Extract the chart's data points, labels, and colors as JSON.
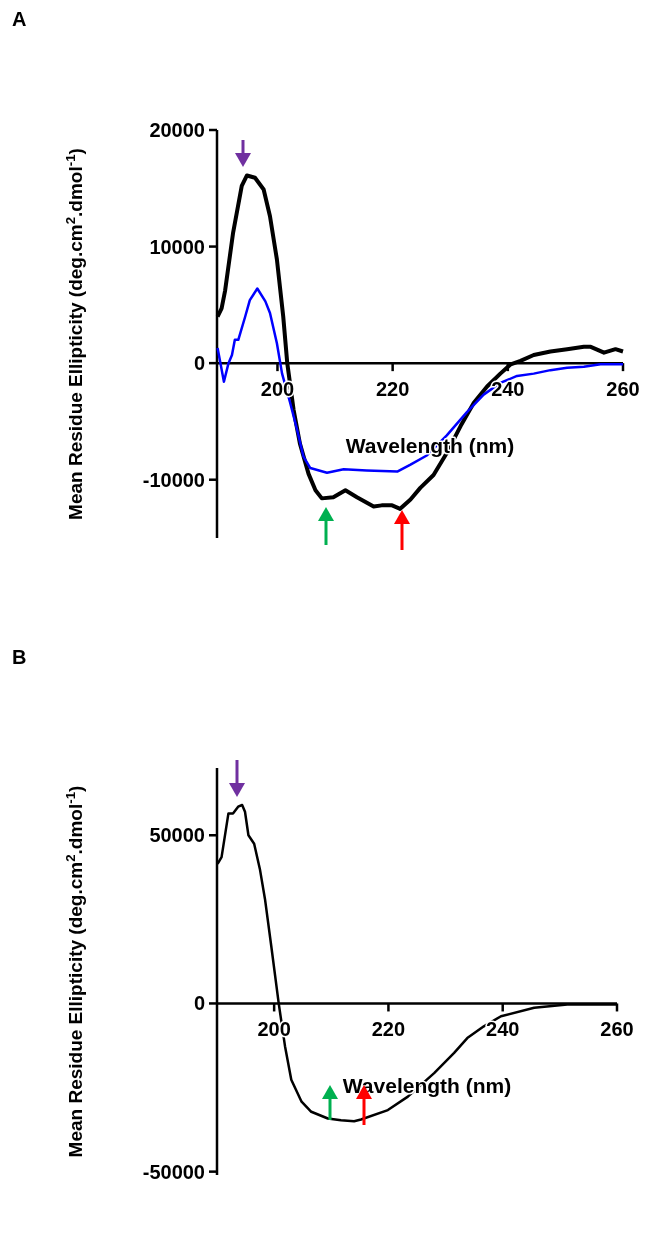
{
  "chart_data": [
    {
      "type": "line",
      "title": "A",
      "xlabel": "Wavelength (nm)",
      "ylabel": "Mean Residue Ellipticity (deg.cm$^{2}$.dmol$^{-1}$)",
      "xlim": [
        189.5,
        260
      ],
      "xticks": [
        200,
        220,
        240,
        260
      ],
      "ylim": [
        -15000,
        20000
      ],
      "yticks": [
        -10000,
        0,
        10000,
        20000
      ],
      "series": [
        {
          "color": "#000000",
          "x": [
            189.6,
            190.3,
            190.9,
            192.3,
            193.8,
            194.7,
            196.1,
            197.6,
            198.7,
            199.9,
            201,
            201.7,
            202.8,
            203.9,
            205.4,
            206.6,
            207.7,
            209.7,
            211.8,
            213.8,
            216.7,
            218.1,
            219.9,
            221.3,
            223.1,
            224.8,
            227.1,
            229.4,
            231.8,
            234.1,
            236.4,
            238.7,
            240.5,
            242.2,
            244.5,
            247.4,
            250.3,
            253.2,
            254.4,
            256.7,
            258.7,
            260
          ],
          "values": [
            4000,
            4700,
            6200,
            11200,
            15200,
            16100,
            15900,
            14900,
            12600,
            8900,
            4000,
            0,
            -4000,
            -6900,
            -9500,
            -10900,
            -11600,
            -11500,
            -10900,
            -11500,
            -12300,
            -12200,
            -12200,
            -12500,
            -11700,
            -10700,
            -9600,
            -7700,
            -5400,
            -3400,
            -2000,
            -900,
            -100,
            200,
            700,
            1000,
            1200,
            1400,
            1400,
            900,
            1200,
            1000
          ]
        },
        {
          "color": "#0000ff",
          "x": [
            189.6,
            190.1,
            190.7,
            191.5,
            192.1,
            192.6,
            193.2,
            194.4,
            195.2,
            196.5,
            197.9,
            198.7,
            199.9,
            200.8,
            202.2,
            203.4,
            204.5,
            205.7,
            208.6,
            211.5,
            215.5,
            220.8,
            223.1,
            226,
            229.4,
            232.9,
            235.8,
            238.7,
            241.6,
            244.5,
            247.4,
            250.3,
            253.2,
            256.1,
            260
          ],
          "values": [
            1300,
            0,
            -1600,
            0,
            700,
            2000,
            2000,
            4000,
            5400,
            6400,
            5300,
            4300,
            1700,
            -900,
            -3400,
            -5700,
            -8000,
            -9000,
            -9400,
            -9100,
            -9200,
            -9300,
            -8700,
            -7900,
            -6200,
            -4200,
            -2700,
            -1700,
            -1100,
            -900,
            -600,
            -400,
            -300,
            -100,
            -100
          ]
        }
      ]
    },
    {
      "type": "line",
      "title": "B",
      "xlabel": "Wavelength (nm)",
      "ylabel": "Mean Residue Ellipticity (deg.cm$^{2}$.dmol$^{-1}$)",
      "xlim": [
        190,
        260
      ],
      "xticks": [
        200,
        220,
        240,
        260
      ],
      "ylim": [
        -51000,
        70000
      ],
      "yticks": [
        -50000,
        0,
        50000
      ],
      "series": [
        {
          "color": "#000000",
          "x": [
            190.1,
            190.8,
            192,
            192.8,
            193.7,
            194.4,
            194.9,
            195.5,
            196.5,
            197.5,
            198.4,
            199.5,
            200.8,
            201.9,
            203,
            204.8,
            206.5,
            209.4,
            211.7,
            214,
            215.2,
            219.9,
            223.4,
            228,
            231.5,
            233.8,
            236.7,
            239.7,
            245.5,
            251.3,
            260
          ],
          "values": [
            41500,
            43500,
            56500,
            56500,
            58500,
            59000,
            57000,
            50000,
            47500,
            40000,
            31000,
            17000,
            0,
            -12700,
            -22700,
            -29200,
            -32200,
            -34200,
            -34700,
            -35000,
            -34500,
            -31700,
            -27700,
            -20700,
            -14700,
            -10300,
            -6800,
            -3800,
            -1300,
            -300,
            -300
          ]
        }
      ]
    }
  ]
}
